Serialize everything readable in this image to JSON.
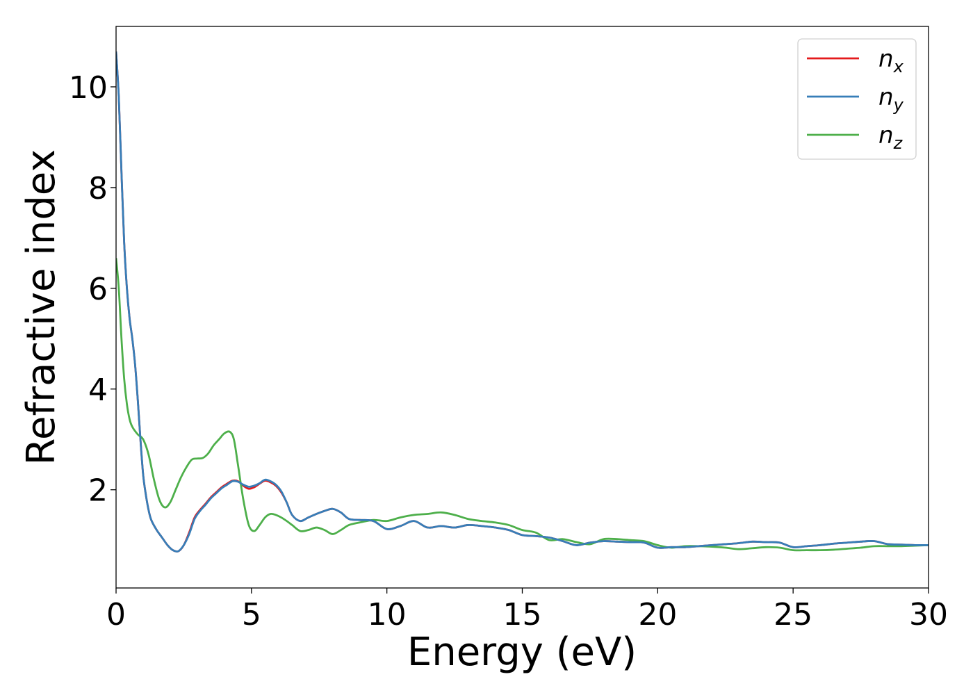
{
  "chart_data": {
    "type": "line",
    "title": "",
    "xlabel": "Energy (eV)",
    "ylabel": "Refractive index",
    "xlim": [
      0,
      30
    ],
    "ylim": [
      0.05,
      11.2
    ],
    "xticks": [
      0,
      5,
      10,
      15,
      20,
      25,
      30
    ],
    "xtick_labels": [
      "0",
      "5",
      "10",
      "15",
      "20",
      "25",
      "30"
    ],
    "yticks": [
      2,
      4,
      6,
      8,
      10
    ],
    "ytick_labels": [
      "2",
      "4",
      "6",
      "8",
      "10"
    ],
    "grid": false,
    "legend_position": "top-right",
    "series": [
      {
        "name": "n_x",
        "label_base": "n",
        "label_sub": "x",
        "color": "#e41a1c",
        "x": [
          0.0,
          0.1,
          0.2,
          0.3,
          0.4,
          0.5,
          0.6,
          0.7,
          0.8,
          0.9,
          1.0,
          1.1,
          1.2,
          1.3,
          1.5,
          1.7,
          1.9,
          2.1,
          2.3,
          2.5,
          2.7,
          2.9,
          3.1,
          3.3,
          3.5,
          3.7,
          3.9,
          4.1,
          4.3,
          4.5,
          4.7,
          4.9,
          5.1,
          5.3,
          5.5,
          5.7,
          5.9,
          6.1,
          6.3,
          6.5,
          6.8,
          7.1,
          7.4,
          7.7,
          8.0,
          8.3,
          8.6,
          9.0,
          9.5,
          10.0,
          10.5,
          11.0,
          11.5,
          12.0,
          12.5,
          13.0,
          13.5,
          14.0,
          14.5,
          15.0,
          15.5,
          16.0,
          16.5,
          17.0,
          17.5,
          18.0,
          18.5,
          19.0,
          19.5,
          20.0,
          20.5,
          21.0,
          21.5,
          22.0,
          22.5,
          23.0,
          23.5,
          24.0,
          24.5,
          25.0,
          25.5,
          26.0,
          26.5,
          27.0,
          27.5,
          28.0,
          28.5,
          29.0,
          29.5,
          30.0
        ],
        "y": [
          10.7,
          9.8,
          8.3,
          6.9,
          6.0,
          5.4,
          5.0,
          4.5,
          3.8,
          3.0,
          2.3,
          1.9,
          1.6,
          1.4,
          1.2,
          1.05,
          0.9,
          0.8,
          0.78,
          0.9,
          1.15,
          1.45,
          1.6,
          1.72,
          1.85,
          1.95,
          2.05,
          2.12,
          2.18,
          2.17,
          2.08,
          2.02,
          2.05,
          2.12,
          2.18,
          2.15,
          2.08,
          1.95,
          1.75,
          1.5,
          1.38,
          1.45,
          1.52,
          1.58,
          1.62,
          1.55,
          1.42,
          1.4,
          1.38,
          1.22,
          1.28,
          1.38,
          1.25,
          1.28,
          1.25,
          1.3,
          1.28,
          1.25,
          1.2,
          1.1,
          1.08,
          1.05,
          0.98,
          0.9,
          0.95,
          0.98,
          0.97,
          0.96,
          0.95,
          0.85,
          0.86,
          0.86,
          0.88,
          0.9,
          0.92,
          0.94,
          0.97,
          0.96,
          0.95,
          0.86,
          0.88,
          0.9,
          0.93,
          0.95,
          0.97,
          0.98,
          0.92,
          0.91,
          0.9,
          0.9
        ]
      },
      {
        "name": "n_y",
        "label_base": "n",
        "label_sub": "y",
        "color": "#377eb8",
        "x": [
          0.0,
          0.1,
          0.2,
          0.3,
          0.4,
          0.5,
          0.6,
          0.7,
          0.8,
          0.9,
          1.0,
          1.1,
          1.2,
          1.3,
          1.5,
          1.7,
          1.9,
          2.1,
          2.3,
          2.5,
          2.7,
          2.9,
          3.1,
          3.3,
          3.5,
          3.7,
          3.9,
          4.1,
          4.3,
          4.5,
          4.7,
          4.9,
          5.1,
          5.3,
          5.5,
          5.7,
          5.9,
          6.1,
          6.3,
          6.5,
          6.8,
          7.1,
          7.4,
          7.7,
          8.0,
          8.3,
          8.6,
          9.0,
          9.5,
          10.0,
          10.5,
          11.0,
          11.5,
          12.0,
          12.5,
          13.0,
          13.5,
          14.0,
          14.5,
          15.0,
          15.5,
          16.0,
          16.5,
          17.0,
          17.5,
          18.0,
          18.5,
          19.0,
          19.5,
          20.0,
          20.5,
          21.0,
          21.5,
          22.0,
          22.5,
          23.0,
          23.5,
          24.0,
          24.5,
          25.0,
          25.5,
          26.0,
          26.5,
          27.0,
          27.5,
          28.0,
          28.5,
          29.0,
          29.5,
          30.0
        ],
        "y": [
          10.7,
          9.8,
          8.3,
          6.9,
          6.0,
          5.4,
          5.0,
          4.5,
          3.8,
          3.0,
          2.3,
          1.9,
          1.6,
          1.4,
          1.2,
          1.05,
          0.9,
          0.8,
          0.78,
          0.9,
          1.12,
          1.42,
          1.58,
          1.7,
          1.83,
          1.93,
          2.03,
          2.1,
          2.17,
          2.16,
          2.1,
          2.06,
          2.08,
          2.13,
          2.2,
          2.17,
          2.1,
          1.97,
          1.75,
          1.5,
          1.38,
          1.45,
          1.52,
          1.58,
          1.62,
          1.55,
          1.42,
          1.4,
          1.38,
          1.22,
          1.28,
          1.38,
          1.25,
          1.28,
          1.25,
          1.3,
          1.28,
          1.25,
          1.2,
          1.1,
          1.08,
          1.05,
          0.98,
          0.9,
          0.95,
          0.98,
          0.97,
          0.96,
          0.95,
          0.85,
          0.86,
          0.86,
          0.88,
          0.9,
          0.92,
          0.94,
          0.97,
          0.96,
          0.95,
          0.86,
          0.88,
          0.9,
          0.93,
          0.95,
          0.97,
          0.98,
          0.92,
          0.91,
          0.9,
          0.9
        ]
      },
      {
        "name": "n_z",
        "label_base": "n",
        "label_sub": "z",
        "color": "#4daf4a",
        "x": [
          0.0,
          0.1,
          0.2,
          0.3,
          0.4,
          0.5,
          0.6,
          0.8,
          1.0,
          1.2,
          1.4,
          1.6,
          1.8,
          2.0,
          2.2,
          2.4,
          2.6,
          2.8,
          3.0,
          3.2,
          3.4,
          3.6,
          3.8,
          4.0,
          4.2,
          4.35,
          4.5,
          4.7,
          4.9,
          5.1,
          5.3,
          5.5,
          5.7,
          5.9,
          6.1,
          6.3,
          6.5,
          6.8,
          7.1,
          7.4,
          7.7,
          8.0,
          8.3,
          8.6,
          9.0,
          9.5,
          10.0,
          10.5,
          11.0,
          11.5,
          12.0,
          12.5,
          13.0,
          13.5,
          14.0,
          14.5,
          15.0,
          15.5,
          16.0,
          16.5,
          17.0,
          17.5,
          18.0,
          18.5,
          19.0,
          19.5,
          20.0,
          20.5,
          21.0,
          21.5,
          22.0,
          22.5,
          23.0,
          23.5,
          24.0,
          24.5,
          25.0,
          25.5,
          26.0,
          26.5,
          27.0,
          27.5,
          28.0,
          28.5,
          29.0,
          29.5,
          30.0
        ],
        "y": [
          6.6,
          6.0,
          5.0,
          4.2,
          3.7,
          3.4,
          3.25,
          3.1,
          3.0,
          2.7,
          2.2,
          1.8,
          1.65,
          1.75,
          2.0,
          2.25,
          2.45,
          2.6,
          2.62,
          2.63,
          2.72,
          2.88,
          3.0,
          3.12,
          3.15,
          3.0,
          2.5,
          1.8,
          1.3,
          1.18,
          1.3,
          1.45,
          1.52,
          1.5,
          1.45,
          1.38,
          1.3,
          1.18,
          1.2,
          1.25,
          1.2,
          1.12,
          1.2,
          1.3,
          1.35,
          1.4,
          1.38,
          1.45,
          1.5,
          1.52,
          1.55,
          1.5,
          1.42,
          1.38,
          1.35,
          1.3,
          1.2,
          1.15,
          1.0,
          1.02,
          0.96,
          0.92,
          1.02,
          1.02,
          1.0,
          0.98,
          0.9,
          0.85,
          0.88,
          0.88,
          0.87,
          0.85,
          0.82,
          0.84,
          0.86,
          0.85,
          0.8,
          0.8,
          0.8,
          0.81,
          0.83,
          0.85,
          0.88,
          0.88,
          0.88,
          0.89,
          0.9
        ]
      }
    ]
  }
}
